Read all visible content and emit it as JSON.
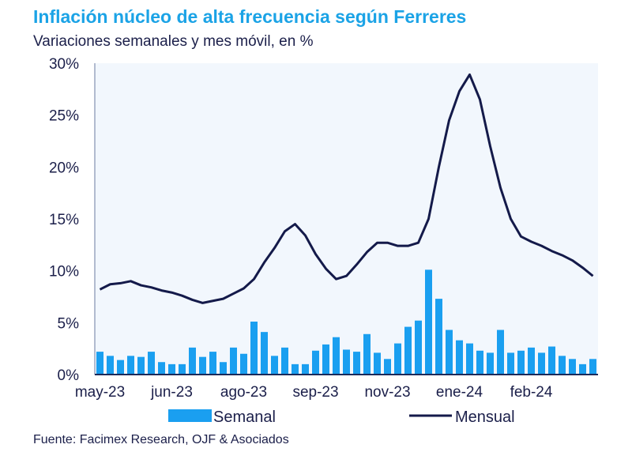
{
  "chart_data": {
    "type": "bar+line",
    "title": "Inflación núcleo de alta frecuencia según Ferreres",
    "subtitle": "Variaciones semanales y mes móvil, en %",
    "source": "Fuente: Facimex Research, OJF & Asociados",
    "ylim": [
      0,
      30
    ],
    "yticks": [
      "0%",
      "5%",
      "10%",
      "15%",
      "20%",
      "25%",
      "30%"
    ],
    "ytick_values": [
      0,
      5,
      10,
      15,
      20,
      25,
      30
    ],
    "xtick_labels": [
      "may-23",
      "jun-23",
      "ago-23",
      "sep-23",
      "nov-23",
      "ene-24",
      "feb-24"
    ],
    "xtick_index": [
      0,
      7,
      14,
      21,
      28,
      35,
      42
    ],
    "legend_position": "bottom",
    "colors": {
      "Semanal": "#1a9ff0",
      "Mensual": "#141a4a",
      "title": "#1ba3e6",
      "plot_bg": "#f2f7fd"
    },
    "series": [
      {
        "name": "Semanal",
        "type": "bar",
        "values": [
          2.2,
          1.8,
          1.4,
          1.8,
          1.7,
          2.2,
          1.2,
          1.0,
          1.0,
          2.6,
          1.7,
          2.2,
          1.2,
          2.6,
          2.0,
          5.1,
          4.1,
          1.8,
          2.6,
          1.0,
          1.0,
          2.3,
          2.9,
          3.6,
          2.4,
          2.2,
          3.9,
          2.1,
          1.5,
          3.0,
          4.6,
          5.2,
          10.1,
          7.3,
          4.3,
          3.3,
          3.0,
          2.3,
          2.1,
          4.3,
          2.1,
          2.3,
          2.6,
          2.1,
          2.7,
          1.8,
          1.5,
          1.0,
          1.5
        ]
      },
      {
        "name": "Mensual",
        "type": "line",
        "values": [
          8.2,
          8.7,
          8.8,
          9.0,
          8.6,
          8.4,
          8.1,
          7.9,
          7.6,
          7.2,
          6.9,
          7.1,
          7.3,
          7.8,
          8.3,
          9.2,
          10.8,
          12.2,
          13.8,
          14.5,
          13.4,
          11.6,
          10.2,
          9.2,
          9.5,
          10.6,
          11.8,
          12.7,
          12.7,
          12.4,
          12.4,
          12.7,
          15.0,
          20.0,
          24.5,
          27.3,
          28.9,
          26.5,
          22.0,
          18.0,
          15.0,
          13.3,
          12.8,
          12.4,
          11.9,
          11.5,
          11.0,
          10.3,
          9.5
        ]
      }
    ]
  }
}
